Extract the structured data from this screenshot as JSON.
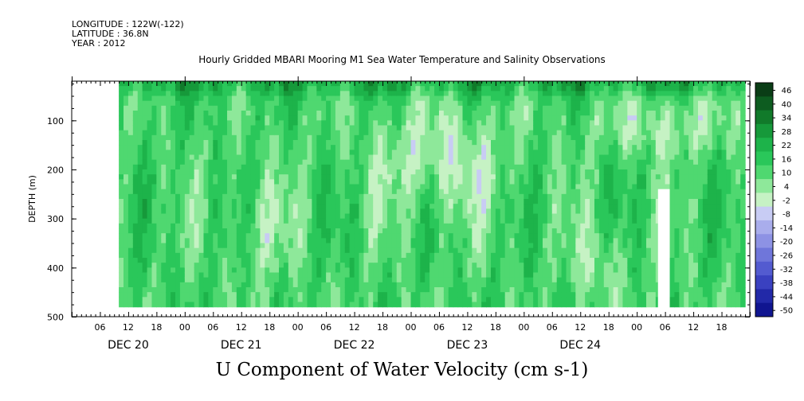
{
  "header": {
    "longitude": "LONGITUDE : 122W(-122)",
    "latitude": "LATITUDE : 36.8N",
    "year": "YEAR : 2012"
  },
  "chart_data": {
    "type": "heatmap",
    "title": "Hourly Gridded MBARI Mooring M1 Sea Water Temperature and Salinity Observations",
    "xlabel": "U Component of Water Velocity (cm s-1)",
    "ylabel": "DEPTH (m)",
    "ylim": [
      500,
      0
    ],
    "yticks": [
      100,
      200,
      300,
      400,
      500
    ],
    "x_hour_ticks": [
      "06",
      "12",
      "18",
      "00",
      "06",
      "12",
      "18",
      "00",
      "06",
      "12",
      "18",
      "00",
      "06",
      "12",
      "18",
      "00",
      "06",
      "12",
      "18",
      "00",
      "06",
      "12",
      "18"
    ],
    "x_day_labels": [
      "DEC 20",
      "DEC 21",
      "DEC 22",
      "DEC 23",
      "DEC 24"
    ],
    "x_range_hours": [
      0,
      144
    ],
    "data_hours": [
      10,
      143
    ],
    "depth_range": [
      20,
      480
    ],
    "colorbar": {
      "levels": [
        46,
        40,
        34,
        28,
        22,
        16,
        10,
        4,
        -2,
        -8,
        -14,
        -20,
        -26,
        -32,
        -38,
        -44,
        -50
      ],
      "colors": [
        "#0a3d16",
        "#0d5c20",
        "#117a2a",
        "#16993a",
        "#1db34a",
        "#2ac75a",
        "#4fd870",
        "#8ee89a",
        "#c6f2c4",
        "#c8ccf4",
        "#a9adec",
        "#8d92e4",
        "#6f76da",
        "#535bd0",
        "#3a41c0",
        "#2229a8",
        "#101590"
      ]
    }
  }
}
